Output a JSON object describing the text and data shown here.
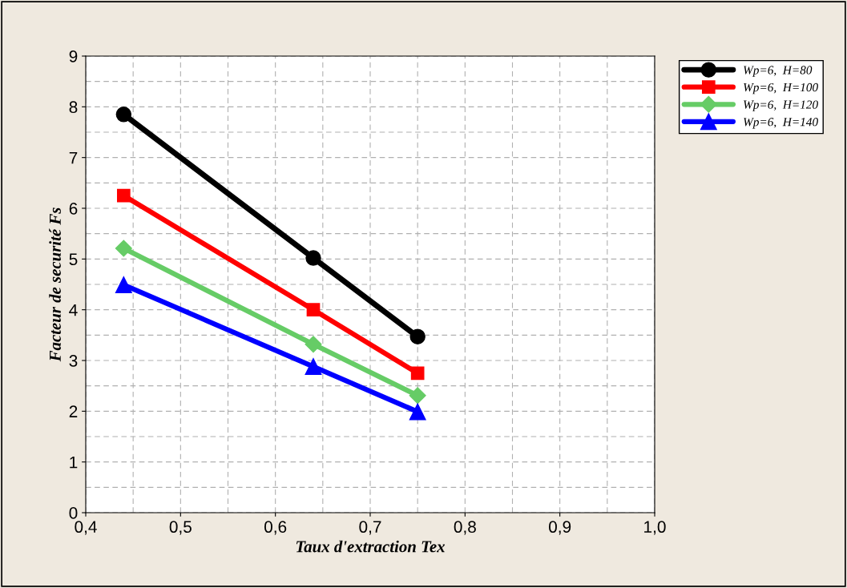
{
  "chart_data": {
    "type": "line",
    "xlabel": "Taux d'extraction Tex",
    "ylabel": "Facteur de securité Fs",
    "x": [
      0.44,
      0.64,
      0.75
    ],
    "series": [
      {
        "name": "Wp=6,  H=80",
        "color": "#000000",
        "marker": "circle",
        "values": [
          7.85,
          5.02,
          3.47
        ]
      },
      {
        "name": "Wp=6,  H=100",
        "color": "#ff0000",
        "marker": "square",
        "values": [
          6.25,
          4.0,
          2.75
        ]
      },
      {
        "name": "Wp=6,  H=120",
        "color": "#66cc66",
        "marker": "diamond",
        "values": [
          5.21,
          3.32,
          2.31
        ]
      },
      {
        "name": "Wp=6,  H=140",
        "color": "#0000ff",
        "marker": "triangle",
        "values": [
          4.49,
          2.88,
          1.99
        ]
      }
    ],
    "xlim": [
      0.4,
      1.0
    ],
    "ylim": [
      0,
      9
    ],
    "xticks": [
      {
        "value": 0.4,
        "label": "0,4"
      },
      {
        "value": 0.5,
        "label": "0,5"
      },
      {
        "value": 0.6,
        "label": "0,6"
      },
      {
        "value": 0.7,
        "label": "0,7"
      },
      {
        "value": 0.8,
        "label": "0,8"
      },
      {
        "value": 0.9,
        "label": "0,9"
      },
      {
        "value": 1.0,
        "label": "1,0"
      }
    ],
    "yticks": [
      0,
      1,
      2,
      3,
      4,
      5,
      6,
      7,
      8,
      9
    ],
    "grid": true,
    "legend": "top right",
    "line_style": "solid"
  }
}
